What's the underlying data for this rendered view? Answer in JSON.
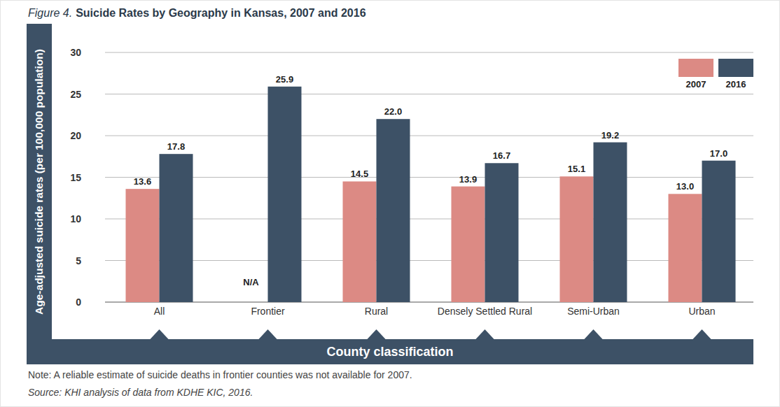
{
  "chart_data": {
    "type": "bar",
    "title": "Suicide Rates by Geography in Kansas, 2007 and 2016",
    "x_label": "County classification",
    "y_label": "Age-adjusted suicide rates (per 100,000 population)",
    "annotations": [
      "Figure 4.",
      "Note: A reliable estimate of suicide deaths in frontier counties was not available for 2007.",
      "Source: KHI analysis of data from KDHE KIC, 2016."
    ],
    "categories": [
      "All",
      "Frontier",
      "Rural",
      "Densely Settled Rural",
      "Semi-Urban",
      "Urban"
    ],
    "series": [
      {
        "name": "2007",
        "color": "#dc8a84",
        "values": [
          13.6,
          null,
          14.5,
          13.9,
          15.1,
          13.0
        ],
        "value_labels": [
          "13.6",
          "N/A",
          "14.5",
          "13.9",
          "15.1",
          "13.0"
        ]
      },
      {
        "name": "2016",
        "color": "#3d5166",
        "values": [
          17.8,
          25.9,
          22.0,
          16.7,
          19.2,
          17.0
        ],
        "value_labels": [
          "17.8",
          "25.9",
          "22.0",
          "16.7",
          "19.2",
          "17.0"
        ]
      }
    ],
    "ylim": [
      0,
      30
    ],
    "yticks": [
      0,
      5,
      10,
      15,
      20,
      25,
      30
    ],
    "grid": true,
    "legend": "top-right",
    "data_labels": true
  }
}
